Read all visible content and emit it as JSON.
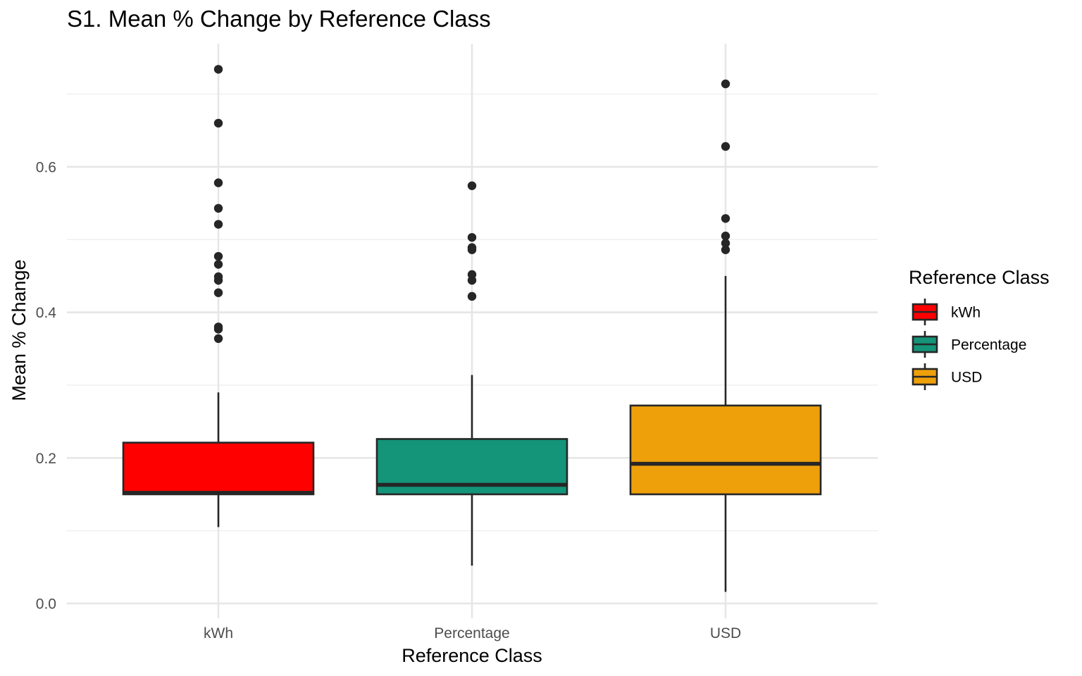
{
  "chart_data": {
    "type": "box",
    "title": "S1. Mean % Change by Reference Class",
    "xlabel": "Reference Class",
    "ylabel": "Mean % Change",
    "ylim": [
      -0.01,
      0.75
    ],
    "yticks": [
      0.0,
      0.2,
      0.4,
      0.6
    ],
    "ytick_labels": [
      "0.0",
      "0.2",
      "0.4",
      "0.6"
    ],
    "y_minor_ticks": [
      0.1,
      0.3,
      0.5,
      0.7
    ],
    "categories": [
      "kWh",
      "Percentage",
      "USD"
    ],
    "grid": true,
    "legend": {
      "title": "Reference Class",
      "position": "right",
      "entries": [
        "kWh",
        "Percentage",
        "USD"
      ]
    },
    "series": [
      {
        "category": "kWh",
        "color": "#ff0000",
        "q1": 0.15,
        "median": 0.152,
        "q3": 0.221,
        "whisker_low": 0.105,
        "whisker_high": 0.29,
        "outliers": [
          0.734,
          0.66,
          0.578,
          0.543,
          0.521,
          0.477,
          0.466,
          0.449,
          0.444,
          0.427,
          0.38,
          0.377,
          0.364
        ]
      },
      {
        "category": "Percentage",
        "color": "#149479",
        "q1": 0.15,
        "median": 0.163,
        "q3": 0.226,
        "whisker_low": 0.052,
        "whisker_high": 0.314,
        "outliers": [
          0.574,
          0.503,
          0.489,
          0.486,
          0.452,
          0.444,
          0.422
        ]
      },
      {
        "category": "USD",
        "color": "#eea00b",
        "q1": 0.15,
        "median": 0.192,
        "q3": 0.272,
        "whisker_low": 0.016,
        "whisker_high": 0.45,
        "outliers": [
          0.714,
          0.628,
          0.529,
          0.505,
          0.495,
          0.486
        ]
      }
    ]
  }
}
